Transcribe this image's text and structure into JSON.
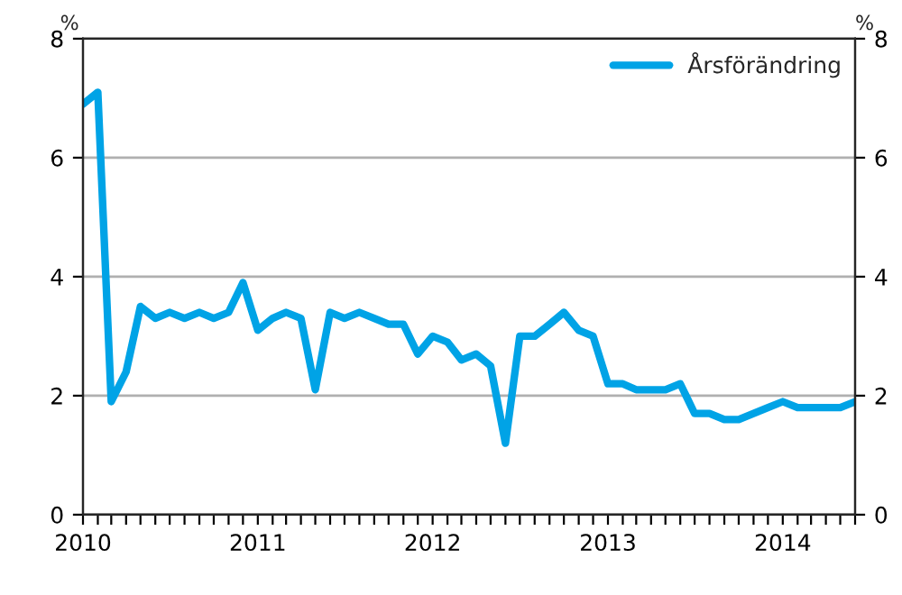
{
  "chart_data": {
    "type": "line",
    "x": [
      "2010-01",
      "2010-02",
      "2010-03",
      "2010-04",
      "2010-05",
      "2010-06",
      "2010-07",
      "2010-08",
      "2010-09",
      "2010-10",
      "2010-11",
      "2010-12",
      "2011-01",
      "2011-02",
      "2011-03",
      "2011-04",
      "2011-05",
      "2011-06",
      "2011-07",
      "2011-08",
      "2011-09",
      "2011-10",
      "2011-11",
      "2011-12",
      "2012-01",
      "2012-02",
      "2012-03",
      "2012-04",
      "2012-05",
      "2012-06",
      "2012-07",
      "2012-08",
      "2012-09",
      "2012-10",
      "2012-11",
      "2012-12",
      "2013-01",
      "2013-02",
      "2013-03",
      "2013-04",
      "2013-05",
      "2013-06",
      "2013-07",
      "2013-08",
      "2013-09",
      "2013-10",
      "2013-11",
      "2013-12",
      "2014-01",
      "2014-02",
      "2014-03",
      "2014-04",
      "2014-05",
      "2014-06"
    ],
    "series": [
      {
        "name": "Årsförändring",
        "color": "#00a3e6",
        "values": [
          6.9,
          7.1,
          1.9,
          2.4,
          3.5,
          3.3,
          3.4,
          3.3,
          3.4,
          3.3,
          3.4,
          3.9,
          3.1,
          3.3,
          3.4,
          3.3,
          2.1,
          3.4,
          3.3,
          3.4,
          3.3,
          3.2,
          3.2,
          2.7,
          3.0,
          2.9,
          2.6,
          2.7,
          2.5,
          1.2,
          3.0,
          3.0,
          3.2,
          3.4,
          3.1,
          3.0,
          2.2,
          2.2,
          2.1,
          2.1,
          2.1,
          2.2,
          1.7,
          1.7,
          1.6,
          1.6,
          1.7,
          1.8,
          1.9,
          1.8,
          1.8,
          1.8,
          1.8,
          1.9
        ]
      }
    ],
    "xlim": [
      "2010-01",
      "2014-06"
    ],
    "xticks": [
      {
        "value": "2010-01",
        "label": "2010"
      },
      {
        "value": "2010-02",
        "label": null
      },
      {
        "value": "2010-03",
        "label": null
      },
      {
        "value": "2010-04",
        "label": null
      },
      {
        "value": "2010-05",
        "label": null
      },
      {
        "value": "2010-06",
        "label": null
      },
      {
        "value": "2010-07",
        "label": null
      },
      {
        "value": "2010-08",
        "label": null
      },
      {
        "value": "2010-09",
        "label": null
      },
      {
        "value": "2010-10",
        "label": null
      },
      {
        "value": "2010-11",
        "label": null
      },
      {
        "value": "2010-12",
        "label": null
      },
      {
        "value": "2011-01",
        "label": "2011"
      },
      {
        "value": "2011-02",
        "label": null
      },
      {
        "value": "2011-03",
        "label": null
      },
      {
        "value": "2011-04",
        "label": null
      },
      {
        "value": "2011-05",
        "label": null
      },
      {
        "value": "2011-06",
        "label": null
      },
      {
        "value": "2011-07",
        "label": null
      },
      {
        "value": "2011-08",
        "label": null
      },
      {
        "value": "2011-09",
        "label": null
      },
      {
        "value": "2011-10",
        "label": null
      },
      {
        "value": "2011-11",
        "label": null
      },
      {
        "value": "2011-12",
        "label": null
      },
      {
        "value": "2012-01",
        "label": "2012"
      },
      {
        "value": "2012-02",
        "label": null
      },
      {
        "value": "2012-03",
        "label": null
      },
      {
        "value": "2012-04",
        "label": null
      },
      {
        "value": "2012-05",
        "label": null
      },
      {
        "value": "2012-06",
        "label": null
      },
      {
        "value": "2012-07",
        "label": null
      },
      {
        "value": "2012-08",
        "label": null
      },
      {
        "value": "2012-09",
        "label": null
      },
      {
        "value": "2012-10",
        "label": null
      },
      {
        "value": "2012-11",
        "label": null
      },
      {
        "value": "2012-12",
        "label": null
      },
      {
        "value": "2013-01",
        "label": "2013"
      },
      {
        "value": "2013-02",
        "label": null
      },
      {
        "value": "2013-03",
        "label": null
      },
      {
        "value": "2013-04",
        "label": null
      },
      {
        "value": "2013-05",
        "label": null
      },
      {
        "value": "2013-06",
        "label": null
      },
      {
        "value": "2013-07",
        "label": null
      },
      {
        "value": "2013-08",
        "label": null
      },
      {
        "value": "2013-09",
        "label": null
      },
      {
        "value": "2013-10",
        "label": null
      },
      {
        "value": "2013-11",
        "label": null
      },
      {
        "value": "2013-12",
        "label": null
      },
      {
        "value": "2014-01",
        "label": "2014"
      },
      {
        "value": "2014-02",
        "label": null
      },
      {
        "value": "2014-03",
        "label": null
      },
      {
        "value": "2014-04",
        "label": null
      },
      {
        "value": "2014-05",
        "label": null
      },
      {
        "value": "2014-06",
        "label": null
      }
    ],
    "ylim": [
      0,
      8
    ],
    "yticks": [
      0,
      2,
      4,
      6,
      8
    ],
    "y2lim": [
      0,
      8
    ],
    "y2ticks": [
      0,
      2,
      4,
      6,
      8
    ],
    "ylabel": "%",
    "y2label": "%",
    "grid": "y",
    "legend": "top right",
    "line_style": "solid",
    "marker": "none"
  }
}
